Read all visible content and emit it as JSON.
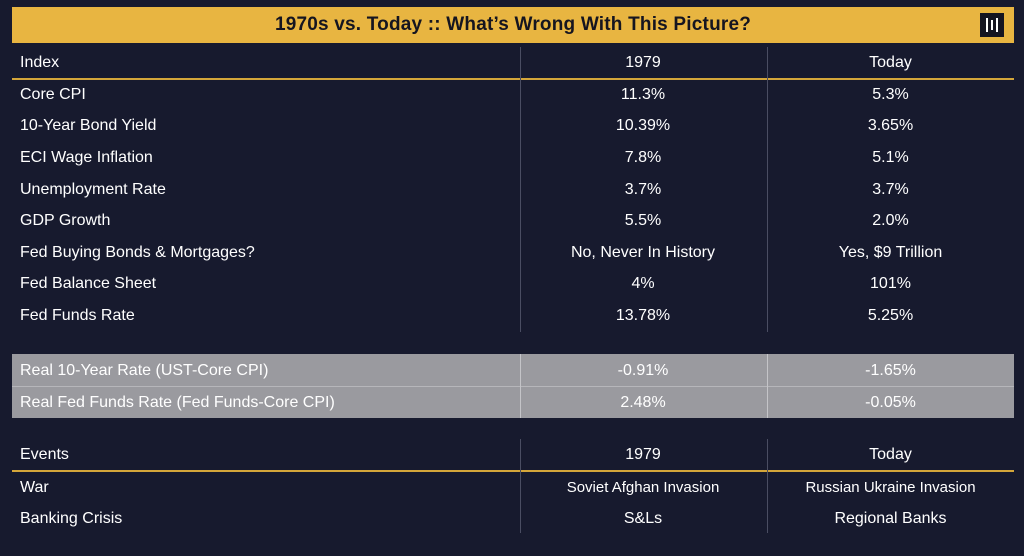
{
  "title": "1970s vs. Today :: What’s Wrong With This Picture?",
  "logo_icon": "pillar-bars-logo",
  "colors": {
    "background": "#171a2e",
    "title_bar": "#e8b541",
    "accent_line": "#d4a63a",
    "highlight_band": "#9a9a9f"
  },
  "index_table": {
    "headers": [
      "Index",
      "1979",
      "Today"
    ],
    "rows": [
      [
        "Core CPI",
        "11.3%",
        "5.3%"
      ],
      [
        "10-Year Bond Yield",
        "10.39%",
        "3.65%"
      ],
      [
        "ECI Wage Inflation",
        "7.8%",
        "5.1%"
      ],
      [
        "Unemployment Rate",
        "3.7%",
        "3.7%"
      ],
      [
        "GDP Growth",
        "5.5%",
        "2.0%"
      ],
      [
        "Fed Buying Bonds & Mortgages?",
        "No, Never In History",
        "Yes, $9 Trillion"
      ],
      [
        "Fed Balance Sheet",
        "4%",
        "101%"
      ],
      [
        "Fed Funds Rate",
        "13.78%",
        "5.25%"
      ]
    ]
  },
  "real_rates": {
    "rows": [
      [
        "Real 10-Year Rate (UST-Core CPI)",
        "-0.91%",
        "-1.65%"
      ],
      [
        "Real Fed Funds Rate (Fed Funds-Core CPI)",
        "2.48%",
        "-0.05%"
      ]
    ]
  },
  "events_table": {
    "headers": [
      "Events",
      "1979",
      "Today"
    ],
    "rows": [
      [
        "War",
        "Soviet Afghan Invasion",
        "Russian Ukraine Invasion"
      ],
      [
        "Banking Crisis",
        "S&Ls",
        "Regional Banks"
      ]
    ]
  }
}
